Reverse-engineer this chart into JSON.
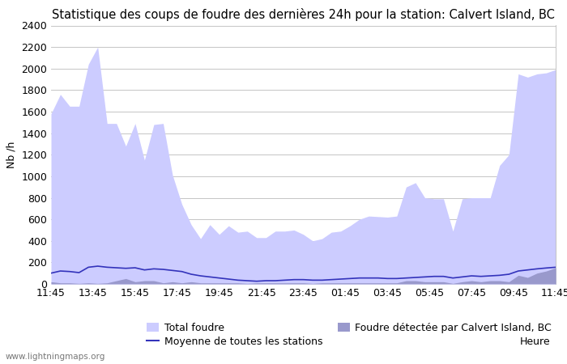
{
  "title": "Statistique des coups de foudre des dernières 24h pour la station: Calvert Island, BC",
  "xlabel": "Heure",
  "ylabel": "Nb /h",
  "ylim": [
    0,
    2400
  ],
  "yticks": [
    0,
    200,
    400,
    600,
    800,
    1000,
    1200,
    1400,
    1600,
    1800,
    2000,
    2200,
    2400
  ],
  "xtick_labels": [
    "11:45",
    "13:45",
    "15:45",
    "17:45",
    "19:45",
    "21:45",
    "23:45",
    "01:45",
    "03:45",
    "05:45",
    "07:45",
    "09:45",
    "11:45"
  ],
  "watermark": "www.lightningmaps.org",
  "fill_color_total": "#ccccff",
  "fill_color_local": "#9999cc",
  "line_color": "#3333bb",
  "grid_color": "#bbbbbb",
  "bg_color": "#ffffff",
  "title_fontsize": 10.5,
  "axis_fontsize": 9,
  "tick_fontsize": 9,
  "legend_fontsize": 9,
  "total_foudre": [
    1580,
    1760,
    1650,
    1650,
    2040,
    2200,
    1490,
    1490,
    1280,
    1490,
    1150,
    1480,
    1490,
    1010,
    740,
    550,
    420,
    550,
    460,
    540,
    480,
    490,
    430,
    430,
    490,
    490,
    500,
    460,
    400,
    420,
    480,
    490,
    540,
    600,
    630,
    625,
    620,
    630,
    900,
    940,
    800,
    790,
    790,
    490,
    790,
    800,
    800,
    800,
    1100,
    1200,
    1950,
    1920,
    1950,
    1960,
    1990
  ],
  "local_foudre": [
    20,
    10,
    10,
    5,
    10,
    5,
    10,
    30,
    50,
    20,
    30,
    30,
    10,
    20,
    10,
    20,
    10,
    10,
    10,
    10,
    10,
    5,
    10,
    10,
    10,
    10,
    10,
    10,
    5,
    10,
    10,
    10,
    10,
    10,
    10,
    10,
    10,
    10,
    30,
    30,
    20,
    20,
    20,
    5,
    20,
    30,
    20,
    30,
    30,
    20,
    80,
    60,
    100,
    120,
    150
  ],
  "moyenne": [
    100,
    120,
    115,
    105,
    155,
    165,
    155,
    150,
    145,
    150,
    130,
    140,
    135,
    125,
    115,
    90,
    75,
    65,
    55,
    45,
    35,
    30,
    25,
    30,
    30,
    35,
    40,
    40,
    35,
    35,
    40,
    45,
    50,
    55,
    55,
    55,
    50,
    50,
    55,
    60,
    65,
    70,
    70,
    55,
    65,
    75,
    70,
    75,
    80,
    90,
    120,
    130,
    140,
    148,
    155
  ]
}
